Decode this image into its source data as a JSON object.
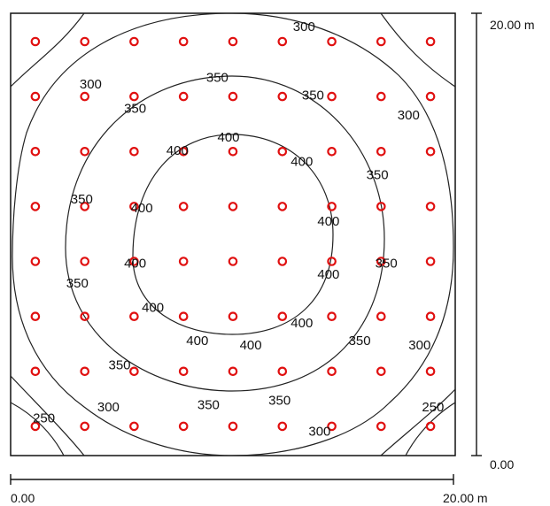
{
  "chart_data": {
    "type": "contour",
    "title": "",
    "units": "m",
    "x_range": [
      0,
      20
    ],
    "y_range": [
      0,
      20
    ],
    "scale_labels": {
      "x_start": "0.00",
      "x_end": "20.00 m",
      "y_start": "0.00",
      "y_end": "20.00 m"
    },
    "measurement_grid": {
      "columns": 9,
      "rows": 8,
      "marker_color": "#e01010"
    },
    "contour_levels": [
      250,
      300,
      350,
      400
    ],
    "contour_labels": [
      {
        "text": "300",
        "x": 13.2,
        "y": 19.2
      },
      {
        "text": "300",
        "x": 3.6,
        "y": 16.6
      },
      {
        "text": "350",
        "x": 9.3,
        "y": 16.9
      },
      {
        "text": "350",
        "x": 5.6,
        "y": 15.5
      },
      {
        "text": "350",
        "x": 13.6,
        "y": 16.1
      },
      {
        "text": "300",
        "x": 17.9,
        "y": 15.2
      },
      {
        "text": "400",
        "x": 9.8,
        "y": 14.2
      },
      {
        "text": "400",
        "x": 7.5,
        "y": 13.6
      },
      {
        "text": "400",
        "x": 13.1,
        "y": 13.1
      },
      {
        "text": "350",
        "x": 16.5,
        "y": 12.5
      },
      {
        "text": "350",
        "x": 3.2,
        "y": 11.4
      },
      {
        "text": "400",
        "x": 5.9,
        "y": 11.0
      },
      {
        "text": "400",
        "x": 14.3,
        "y": 10.4
      },
      {
        "text": "400",
        "x": 5.6,
        "y": 8.5
      },
      {
        "text": "350",
        "x": 16.9,
        "y": 8.5
      },
      {
        "text": "400",
        "x": 14.3,
        "y": 8.0
      },
      {
        "text": "350",
        "x": 3.0,
        "y": 7.6
      },
      {
        "text": "400",
        "x": 6.4,
        "y": 6.5
      },
      {
        "text": "400",
        "x": 13.1,
        "y": 5.8
      },
      {
        "text": "400",
        "x": 8.4,
        "y": 5.0
      },
      {
        "text": "400",
        "x": 10.8,
        "y": 4.8
      },
      {
        "text": "350",
        "x": 15.7,
        "y": 5.0
      },
      {
        "text": "300",
        "x": 18.4,
        "y": 4.8
      },
      {
        "text": "350",
        "x": 4.9,
        "y": 3.9
      },
      {
        "text": "350",
        "x": 8.9,
        "y": 2.1
      },
      {
        "text": "350",
        "x": 12.1,
        "y": 2.3
      },
      {
        "text": "300",
        "x": 4.4,
        "y": 2.0
      },
      {
        "text": "250",
        "x": 19.0,
        "y": 2.0
      },
      {
        "text": "250",
        "x": 1.5,
        "y": 1.5
      },
      {
        "text": "300",
        "x": 13.9,
        "y": 0.9
      }
    ]
  }
}
